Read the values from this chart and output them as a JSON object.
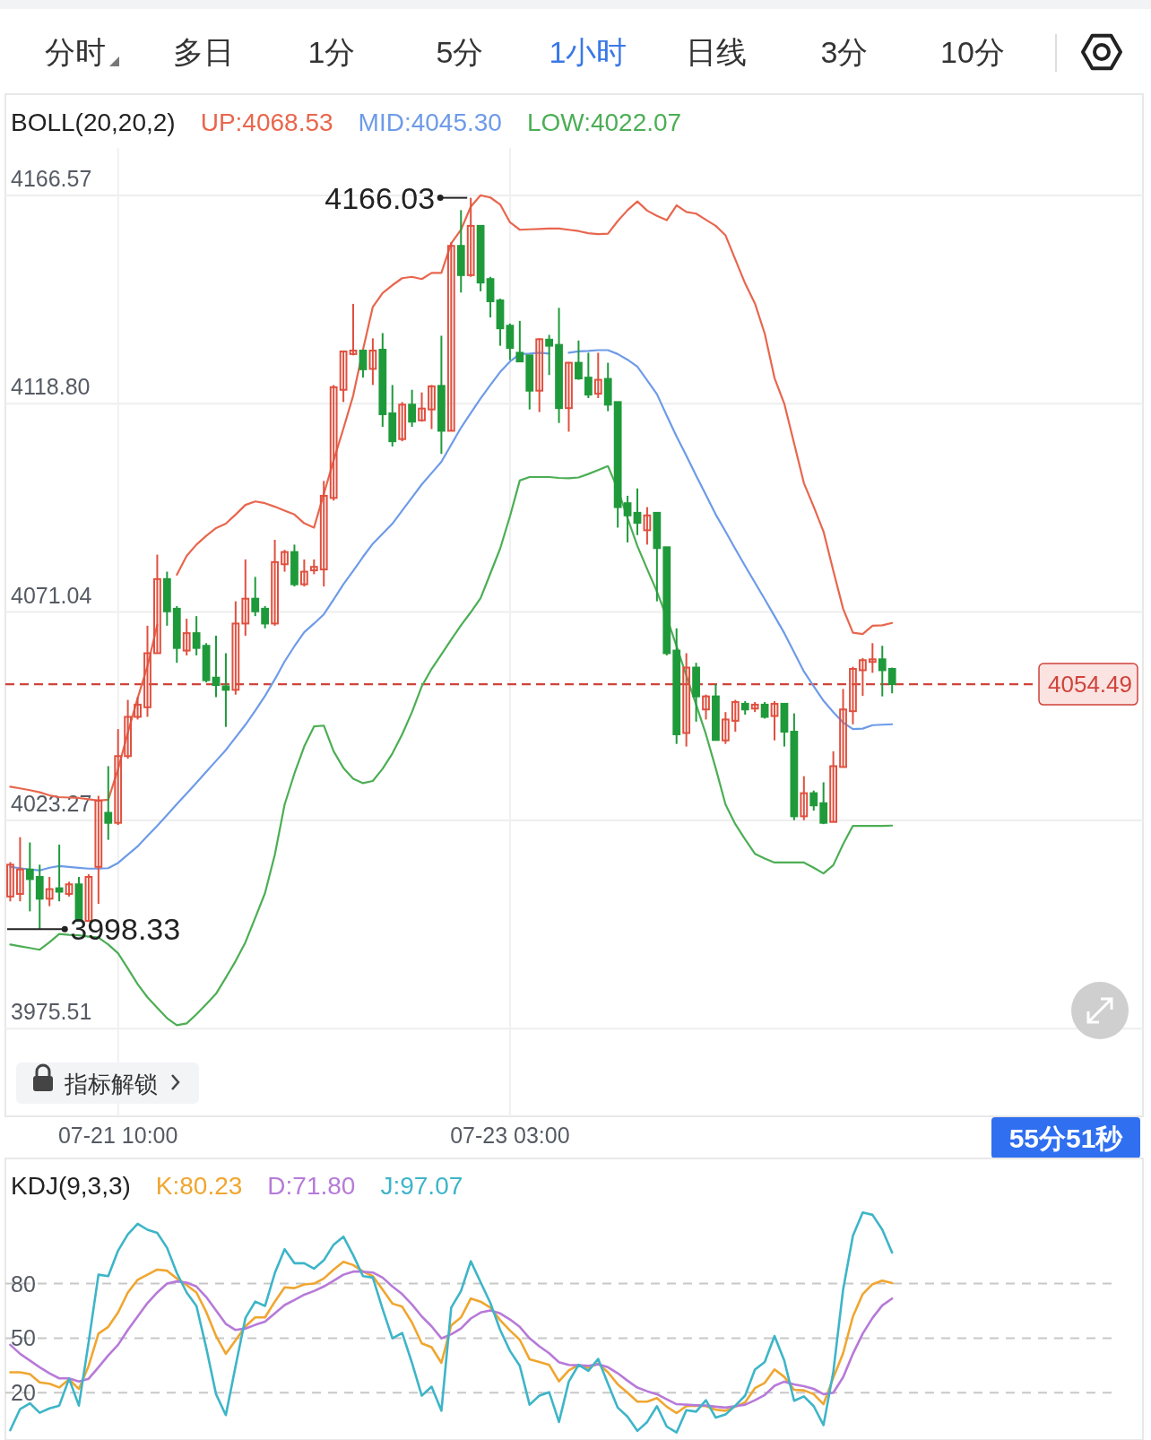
{
  "chart_data": [
    {
      "type": "other",
      "categories": [
        "分时",
        "多日",
        "1分",
        "5分",
        "1小时",
        "日线",
        "3分",
        "10分"
      ],
      "colors": [
        "#333333",
        "#333333",
        "#333333",
        "#333333",
        "#3a78e6",
        "#333333",
        "#333333",
        "#333333"
      ]
    },
    {
      "type": "candlestick",
      "title": "BOLL(20,20,2)",
      "legend": "top",
      "grid": true,
      "categories": [
        null,
        null,
        null,
        null,
        null,
        null,
        null,
        null,
        null,
        null,
        null,
        "07-21 10:00",
        null,
        null,
        null,
        null,
        null,
        null,
        null,
        null,
        null,
        null,
        null,
        null,
        null,
        null,
        null,
        null,
        null,
        null,
        null,
        null,
        null,
        null,
        null,
        null,
        null,
        null,
        null,
        null,
        null,
        null,
        null,
        null,
        null,
        null,
        null,
        null,
        null,
        null,
        null,
        "07-23 03:00",
        null,
        null,
        null,
        null,
        null,
        null,
        null,
        null,
        null,
        null,
        null,
        null,
        null,
        null,
        null,
        null,
        null,
        null,
        null,
        null,
        null,
        null,
        null,
        null,
        null,
        null,
        null,
        null,
        null,
        null,
        null,
        null,
        null,
        null,
        null,
        null,
        null,
        null,
        null
      ],
      "ohlc": [
        [
          4005.8,
          4013.7,
          4004.7,
          4013.1
        ],
        [
          4006.4,
          4019.4,
          4004.7,
          4012.0
        ],
        [
          4012.0,
          4018.2,
          4002.4,
          4009.8
        ],
        [
          4010.3,
          4013.1,
          3998.33,
          4005.3
        ],
        [
          4005.3,
          4010.3,
          4003.6,
          4007.5
        ],
        [
          4007.7,
          4017.7,
          4004.7,
          4006.9
        ],
        [
          4006.4,
          4009.2,
          4005.8,
          4008.6
        ],
        [
          4008.6,
          4010.3,
          4000.2,
          4000.2
        ],
        [
          4000.2,
          4010.9,
          4000.2,
          4010.3
        ],
        [
          4012.6,
          4028.9,
          4004.1,
          4027.8
        ],
        [
          4025.0,
          4035.7,
          4018.8,
          4022.7
        ],
        [
          4022.7,
          4044.2,
          4022.2,
          4038.0
        ],
        [
          4038.0,
          4050.9,
          4037.4,
          4047.0
        ],
        [
          4047.0,
          4051.5,
          4046.4,
          4049.8
        ],
        [
          4049.2,
          4067.9,
          4047.0,
          4061.6
        ],
        [
          4061.6,
          4084.2,
          4061.6,
          4078.6
        ],
        [
          4078.6,
          4080.3,
          4067.9,
          4071.2
        ],
        [
          4071.8,
          4072.4,
          4059.4,
          4062.8
        ],
        [
          4062.2,
          4069.5,
          4061.1,
          4066.2
        ],
        [
          4066.2,
          4070.1,
          4061.1,
          4062.8
        ],
        [
          4063.3,
          4063.9,
          4054.9,
          4055.4
        ],
        [
          4056.0,
          4065.6,
          4051.5,
          4054.3
        ],
        [
          4054.0,
          4061.6,
          4044.7,
          4053.2
        ],
        [
          4053.2,
          4073.5,
          4052.1,
          4068.4
        ],
        [
          4068.4,
          4083.1,
          4065.6,
          4074.1
        ],
        [
          4074.1,
          4079.1,
          4070.1,
          4071.2
        ],
        [
          4071.8,
          4072.4,
          4067.3,
          4068.4
        ],
        [
          4068.4,
          4087.6,
          4067.9,
          4082.5
        ],
        [
          4082.0,
          4085.3,
          4080.3,
          4084.8
        ],
        [
          4084.8,
          4086.5,
          4076.9,
          4077.4
        ],
        [
          4077.4,
          4083.1,
          4076.9,
          4080.3
        ],
        [
          4080.6,
          4083.1,
          4079.7,
          4081.4
        ],
        [
          4080.8,
          4101.1,
          4076.9,
          4097.7
        ],
        [
          4097.2,
          4123.1,
          4096.6,
          4122.6
        ],
        [
          4122.0,
          4131.0,
          4119.2,
          4130.8
        ],
        [
          4130.2,
          4141.7,
          4129.9,
          4131.0
        ],
        [
          4131.0,
          4131.0,
          4124.8,
          4126.7
        ],
        [
          4126.8,
          4133.8,
          4123.1,
          4131.0
        ],
        [
          4131.2,
          4135.0,
          4113.5,
          4116.4
        ],
        [
          4116.6,
          4123.1,
          4109.0,
          4110.2
        ],
        [
          4110.7,
          4119.2,
          4110.2,
          4118.6
        ],
        [
          4118.6,
          4122.0,
          4113.5,
          4114.7
        ],
        [
          4115.0,
          4121.4,
          4114.7,
          4117.7
        ],
        [
          4117.5,
          4123.1,
          4113.0,
          4122.8
        ],
        [
          4122.9,
          4134.4,
          4107.3,
          4112.6
        ],
        [
          4112.6,
          4155.8,
          4112.6,
          4155.0
        ],
        [
          4155.0,
          4163.2,
          4144.3,
          4148.3
        ],
        [
          4148.3,
          4166.03,
          4147.9,
          4159.6
        ],
        [
          4159.6,
          4159.6,
          4144.6,
          4146.6
        ],
        [
          4147.4,
          4147.9,
          4138.6,
          4142.3
        ],
        [
          4142.5,
          4142.9,
          4132.1,
          4136.1
        ],
        [
          4136.7,
          4137.2,
          4128.8,
          4131.6
        ],
        [
          4130.5,
          4137.8,
          4128.5,
          4128.5
        ],
        [
          4129.9,
          4129.9,
          4117.5,
          4121.8
        ],
        [
          4121.8,
          4133.8,
          4116.9,
          4133.6
        ],
        [
          4133.5,
          4134.6,
          4125.4,
          4132.1
        ],
        [
          4132.3,
          4140.8,
          4114.4,
          4117.8
        ],
        [
          4117.8,
          4128.4,
          4112.4,
          4128.2
        ],
        [
          4128.2,
          4133.3,
          4124.3,
          4124.6
        ],
        [
          4124.8,
          4130.5,
          4120.1,
          4120.9
        ],
        [
          4121.1,
          4130.5,
          4120.1,
          4124.3
        ],
        [
          4124.5,
          4128.2,
          4117.1,
          4118.6
        ],
        [
          4119.2,
          4119.2,
          4090.4,
          4095.1
        ],
        [
          4096.0,
          4097.7,
          4087.0,
          4093.2
        ],
        [
          4093.8,
          4099.4,
          4088.7,
          4091.5
        ],
        [
          4089.8,
          4095.1,
          4086.5,
          4093.2
        ],
        [
          4093.8,
          4093.8,
          4073.5,
          4085.7
        ],
        [
          4085.9,
          4085.9,
          4061.1,
          4061.6
        ],
        [
          4062.2,
          4067.3,
          4040.8,
          4043.0
        ],
        [
          4043.3,
          4061.6,
          4040.2,
          4058.3
        ],
        [
          4058.3,
          4059.4,
          4045.9,
          4051.7
        ],
        [
          4048.7,
          4052.1,
          4046.4,
          4051.7
        ],
        [
          4051.7,
          4054.5,
          4041.7,
          4041.7
        ],
        [
          4041.6,
          4048.1,
          4040.8,
          4046.4
        ],
        [
          4046.1,
          4050.9,
          4043.6,
          4050.4
        ],
        [
          4050.0,
          4050.6,
          4047.5,
          4048.7
        ],
        [
          4048.9,
          4050.4,
          4048.1,
          4049.8
        ],
        [
          4049.8,
          4050.4,
          4046.6,
          4047.0
        ],
        [
          4047.2,
          4050.6,
          4041.6,
          4050.0
        ],
        [
          4050.0,
          4050.0,
          4040.2,
          4043.6
        ],
        [
          4043.6,
          4047.8,
          4023.3,
          4024.2
        ],
        [
          4024.2,
          4033.4,
          4023.3,
          4029.5
        ],
        [
          4029.5,
          4030.1,
          4025.5,
          4026.7
        ],
        [
          4027.2,
          4032.0,
          4022.4,
          4022.7
        ],
        [
          4022.9,
          4039.1,
          4022.9,
          4035.7
        ],
        [
          4035.5,
          4053.4,
          4035.5,
          4048.7
        ],
        [
          4048.3,
          4058.5,
          4045.3,
          4058.0
        ],
        [
          4057.7,
          4060.5,
          4051.8,
          4060.0
        ],
        [
          4059.6,
          4063.9,
          4057.1,
          4060.2
        ],
        [
          4060.2,
          4063.3,
          4051.7,
          4057.7
        ],
        [
          4058.0,
          4058.3,
          4052.4,
          4054.49
        ]
      ],
      "series": [
        {
          "name": "UP:4068.53",
          "type": "line",
          "color": "#e8664e",
          "values": [
            4031.0,
            4030.6,
            4030.2,
            4029.7,
            4029.0,
            4028.6,
            4028.5,
            4028.4,
            4028.1,
            4027.8,
            4028.0,
            4035.0,
            4043.4,
            4051.3,
            4058.6,
            4068.1,
            null,
            4079.6,
            4083.9,
            4086.5,
            4088.5,
            4090.3,
            4091.3,
            4093.4,
            4095.6,
            4096.4,
            4096.0,
            4095.2,
            4094.3,
            4093.4,
            4091.4,
            4090.4,
            4098.1,
            4105.8,
            4113.1,
            4120.7,
            4131.2,
            4141.0,
            4144.2,
            4146.0,
            4147.6,
            4147.9,
            4147.4,
            4148.8,
            4148.8,
            4155.6,
            4158.7,
            4164.0,
            4166.6,
            4166.1,
            4164.5,
            4160.4,
            4158.7,
            4158.8,
            4158.9,
            4159.0,
            4159.0,
            4158.7,
            4158.4,
            4157.9,
            4157.7,
            4157.8,
            4160.7,
            4163.2,
            4165.2,
            4163.1,
            4161.9,
            4160.9,
            4164.3,
            4162.8,
            4162.4,
            4161.0,
            4159.6,
            4157.4,
            4151.9,
            4146.4,
            4141.8,
            4134.9,
            4124.7,
            4118.8,
            4109.7,
            4100.6,
            4095.2,
            4089.5,
            4080.5,
            4071.8,
            4066.3,
            4066.0,
            4067.9,
            4068.0,
            4068.53
          ]
        },
        {
          "name": "MID:4045.30",
          "type": "line",
          "color": "#6e9be8",
          "values": [
            4012.6,
            4012.3,
            4012.0,
            4011.8,
            4012.4,
            4012.8,
            4012.6,
            4012.4,
            4012.2,
            4012.2,
            4012.3,
            4013.5,
            4015.4,
            4017.3,
            4019.7,
            4022.0,
            4024.5,
            4027.0,
            4029.4,
            4031.9,
            4034.4,
            4036.9,
            4039.4,
            4042.3,
            4045.2,
            4048.4,
            4051.8,
            4055.6,
            4059.7,
            4063.2,
            4066.4,
            4068.4,
            4070.5,
            4073.9,
            4077.4,
            4080.5,
            4083.7,
            4086.7,
            4089.0,
            4091.3,
            4094.3,
            4097.3,
            4100.3,
            4102.9,
            4105.5,
            4109.4,
            4113.3,
            4116.7,
            4120.0,
            4123.1,
            4126.1,
            4128.5,
            4130.2,
            4130.3,
            4130.5,
            4130.3,
            null,
            4130.5,
            4130.8,
            4130.9,
            4131.1,
            4131.1,
            4130.2,
            4128.9,
            4127.3,
            4124.2,
            4121.0,
            4116.1,
            4111.3,
            4106.9,
            4102.3,
            4097.9,
            4093.4,
            4089.5,
            4085.5,
            4081.6,
            4077.8,
            4074.0,
            4070.1,
            4066.2,
            4061.8,
            4057.4,
            4054.0,
            4050.7,
            4048.1,
            4045.7,
            4044.2,
            4044.3,
            4045.1,
            4045.2,
            4045.3
          ]
        },
        {
          "name": "LOW:4022.07",
          "type": "line",
          "color": "#4cae55",
          "values": [
            3994.8,
            3994.4,
            3994.0,
            3993.6,
            3995.3,
            3997.2,
            3997.0,
            3996.9,
            3996.6,
            3996.4,
            3994.8,
            3992.8,
            3989.3,
            3985.7,
            3982.7,
            3980.3,
            3977.9,
            3976.3,
            3976.7,
            3978.8,
            3981.1,
            3983.5,
            3987.2,
            3991.0,
            3995.3,
            4000.9,
            4006.6,
            4015.4,
            4026.9,
            4034.0,
            4040.2,
            4044.8,
            4045.0,
            4039.1,
            4035.3,
            4032.8,
            4031.8,
            4032.3,
            4035.1,
            4038.6,
            4043.0,
            4048.1,
            4054.0,
            4058.0,
            4061.3,
            4064.7,
            4068.0,
            4071.0,
            4074.2,
            4079.9,
            4085.6,
            4093.0,
            4101.2,
            4102.0,
            4102.0,
            4102.0,
            4101.8,
            4101.7,
            4101.9,
            4102.7,
            4103.6,
            4104.5,
            4099.2,
            4092.6,
            4086.2,
            4080.9,
            4075.7,
            4069.8,
            4063.2,
            4056.5,
            4049.8,
            4043.0,
            4035.2,
            4026.9,
            4022.4,
            4018.9,
            4015.6,
            4014.5,
            4013.6,
            4013.6,
            4013.6,
            4013.6,
            4012.4,
            4011.1,
            4013.0,
            4017.8,
            4022.0,
            4022.0,
            4022.0,
            4022.0,
            4022.07
          ]
        }
      ],
      "ylim": [
        3955.4,
        4189.8
      ],
      "yticks": [
        {
          "value": 3975.51,
          "label": "3975.51"
        },
        {
          "value": 4023.27,
          "label": "4023.27"
        },
        {
          "value": 4071.04,
          "label": "4071.04"
        },
        {
          "value": 4118.8,
          "label": "4118.80"
        },
        {
          "value": 4166.57,
          "label": "4166.57"
        }
      ],
      "ref_lines": [
        {
          "axis": "y",
          "value": 4054.49,
          "label": "4054.49",
          "color": "#d0433b",
          "line_style": "dashed"
        }
      ],
      "annotations": [
        "4166.03",
        "3998.33",
        "指标解锁",
        "55分51秒"
      ]
    },
    {
      "type": "line",
      "title": "KDJ(9,3,3)",
      "legend": "top left",
      "grid": "y",
      "tick_labels": "y",
      "categories": [
        null,
        null,
        null,
        null,
        null,
        null,
        null,
        null,
        null,
        null,
        null,
        null,
        null,
        null,
        null,
        null,
        null,
        null,
        null,
        null,
        null,
        null,
        null,
        null,
        null,
        null,
        null,
        null,
        null,
        null,
        null,
        null,
        null,
        null,
        null,
        null,
        null,
        null,
        null,
        null,
        null,
        null,
        null,
        null,
        null,
        null,
        null,
        null,
        null,
        null,
        null,
        null,
        null,
        null,
        null,
        null,
        null,
        null,
        null,
        null,
        null,
        null,
        null,
        null,
        null,
        null,
        null,
        null,
        null,
        null,
        null,
        null,
        null,
        null,
        null,
        null,
        null,
        null,
        null,
        null,
        null,
        null,
        null,
        null,
        null,
        null,
        null,
        null,
        null,
        null,
        null
      ],
      "series": [
        {
          "name": "K:80.23",
          "color": "#f0a630",
          "values": [
            31.2,
            31.2,
            30.2,
            25.7,
            24.9,
            22.9,
            27.4,
            22.0,
            34.8,
            52.5,
            56.2,
            64.1,
            75.1,
            82.1,
            84.9,
            87.7,
            87.1,
            82.8,
            79.2,
            75.1,
            64.4,
            51.2,
            41.4,
            48.8,
            56.5,
            61.4,
            61.4,
            70.1,
            77.9,
            77.5,
            79.5,
            80.0,
            82.8,
            87.7,
            92.0,
            90.2,
            86.6,
            84.1,
            76.7,
            69.0,
            67.3,
            58.6,
            47.1,
            45.0,
            36.4,
            57.0,
            61.4,
            71.8,
            70.1,
            66.8,
            59.9,
            54.2,
            49.1,
            38.4,
            36.9,
            35.3,
            26.2,
            32.3,
            35.3,
            33.6,
            36.1,
            31.2,
            24.6,
            20.0,
            15.1,
            15.1,
            17.0,
            12.3,
            8.8,
            12.6,
            12.9,
            12.6,
            10.6,
            10.1,
            12.3,
            14.7,
            22.5,
            25.4,
            32.8,
            28.7,
            21.6,
            21.3,
            19.2,
            13.7,
            28.2,
            41.7,
            61.9,
            74.2,
            79.7,
            81.6,
            80.23
          ]
        },
        {
          "name": "D:71.80",
          "color": "#b77ad8",
          "values": [
            46.3,
            41.4,
            37.7,
            34.0,
            30.7,
            27.9,
            27.9,
            26.2,
            27.7,
            34.0,
            40.5,
            46.3,
            54.5,
            61.9,
            69.3,
            75.1,
            80.0,
            81.2,
            80.5,
            78.4,
            72.6,
            65.2,
            57.8,
            54.5,
            55.3,
            57.3,
            59.1,
            63.6,
            68.2,
            71.0,
            73.9,
            75.9,
            78.4,
            81.6,
            84.9,
            86.6,
            86.6,
            86.1,
            83.3,
            78.4,
            74.2,
            68.5,
            61.9,
            56.5,
            49.9,
            52.1,
            55.3,
            60.8,
            64.1,
            65.2,
            63.6,
            60.3,
            56.2,
            49.9,
            45.5,
            41.7,
            36.8,
            35.3,
            35.1,
            34.8,
            35.6,
            34.0,
            30.7,
            26.6,
            22.8,
            20.8,
            19.2,
            16.4,
            13.7,
            13.4,
            13.1,
            12.9,
            12.3,
            11.8,
            12.6,
            13.4,
            15.9,
            18.7,
            23.8,
            26.1,
            24.6,
            23.6,
            22.1,
            19.2,
            20.0,
            28.5,
            41.4,
            52.5,
            61.1,
            68.0,
            71.8
          ]
        },
        {
          "name": "J:97.07",
          "color": "#3db5c8",
          "values": [
            -0.6,
            11.0,
            14.2,
            9.0,
            11.4,
            12.9,
            27.7,
            12.9,
            47.9,
            84.9,
            84.1,
            98.1,
            107.1,
            112.9,
            109.6,
            107.9,
            99.7,
            85.8,
            75.1,
            67.7,
            44.7,
            19.2,
            7.7,
            34.8,
            61.1,
            70.1,
            67.7,
            85.8,
            98.9,
            91.2,
            91.2,
            88.2,
            92.8,
            101.4,
            105.8,
            95.6,
            84.1,
            83.3,
            66.0,
            49.9,
            52.9,
            36.4,
            18.4,
            23.3,
            10.1,
            66.8,
            75.9,
            92.3,
            80.8,
            69.3,
            54.5,
            43.0,
            34.8,
            13.4,
            18.4,
            20.3,
            3.9,
            26.1,
            35.3,
            32.0,
            38.6,
            24.9,
            11.8,
            6.8,
            -1.0,
            3.9,
            12.6,
            1.4,
            -1.9,
            10.4,
            9.6,
            15.9,
            6.3,
            8.0,
            12.9,
            18.4,
            32.7,
            36.9,
            51.2,
            37.6,
            15.6,
            18.0,
            12.6,
            2.2,
            31.5,
            76.7,
            106.3,
            119.1,
            117.8,
            109.6,
            97.07
          ]
        }
      ],
      "ylim": [
        -6,
        148.8
      ],
      "yticks": [
        20,
        50,
        80
      ]
    }
  ]
}
